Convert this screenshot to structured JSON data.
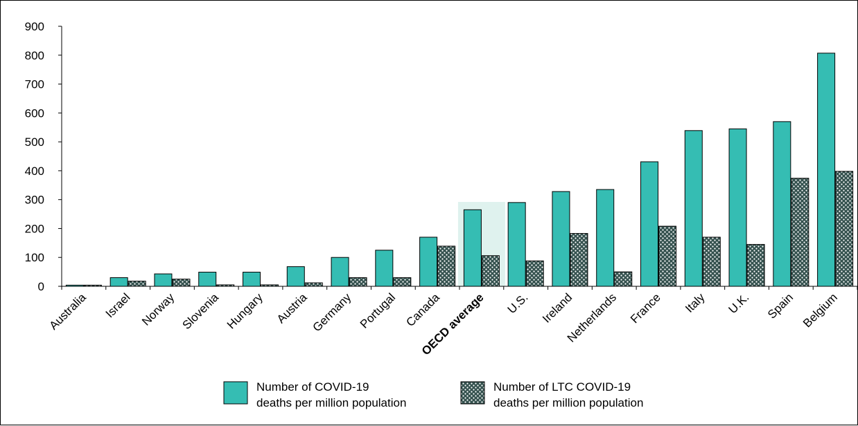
{
  "chart_data": {
    "type": "bar",
    "categories": [
      "Australia",
      "Israel",
      "Norway",
      "Slovenia",
      "Hungary",
      "Austria",
      "Germany",
      "Portugal",
      "Canada",
      "OECD average",
      "U.S.",
      "Ireland",
      "Netherlands",
      "France",
      "Italy",
      "U.K.",
      "Spain",
      "Belgium"
    ],
    "highlight_category": "OECD average",
    "series": [
      {
        "name": "Number of COVID-19 deaths per million population",
        "legend_lines": [
          "Number of COVID-19",
          "deaths per million population"
        ],
        "color": "#35bdb3",
        "pattern": "solid",
        "values": [
          4,
          30,
          43,
          49,
          49,
          68,
          100,
          125,
          170,
          265,
          290,
          328,
          335,
          431,
          539,
          545,
          570,
          807
        ]
      },
      {
        "name": "Number of LTC COVID-19 deaths per million population",
        "legend_lines": [
          "Number of LTC COVID-19",
          "deaths per million population"
        ],
        "color": "#35524f",
        "pattern": "dotted",
        "values": [
          4,
          18,
          25,
          5,
          5,
          12,
          30,
          30,
          139,
          106,
          88,
          183,
          50,
          208,
          170,
          145,
          374,
          398
        ]
      }
    ],
    "yticks": [
      "0",
      "100",
      "200",
      "300",
      "400",
      "500",
      "600",
      "700",
      "800",
      "900"
    ],
    "ylim": [
      0,
      900
    ],
    "title": "",
    "xlabel": "",
    "ylabel": "",
    "legend_position": "bottom",
    "grid": false,
    "highlight_color": "#dff2ee"
  }
}
